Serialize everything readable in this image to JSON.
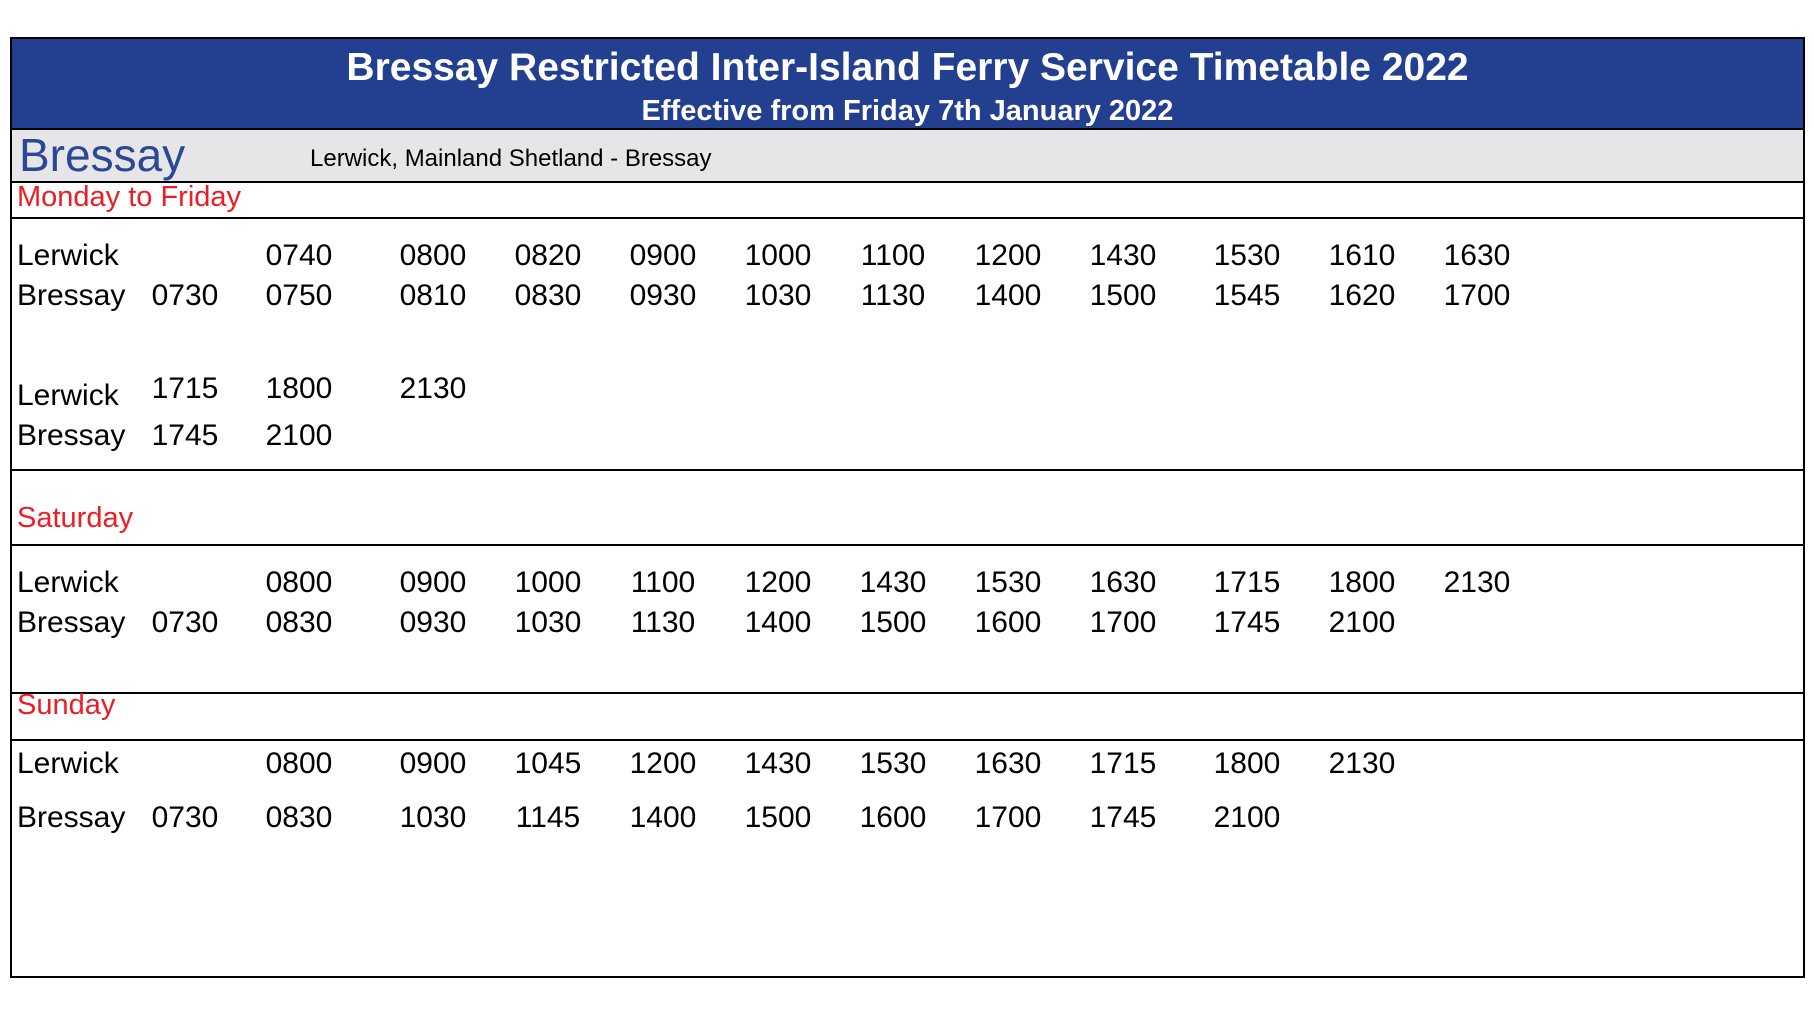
{
  "header": {
    "title": "Bressay Restricted Inter-Island Ferry Service Timetable  2022",
    "subtitle": "Effective from Friday 7th January 2022"
  },
  "route": {
    "island": "Bressay",
    "description": "Lerwick, Mainland Shetland - Bressay"
  },
  "stop_names": {
    "lerwick": "Lerwick",
    "bressay": "Bressay"
  },
  "colors": {
    "header_bg": "#233f8f",
    "route_bg": "#e6e5e8",
    "day_label": "#ee1c25",
    "island_text": "#2b4896"
  },
  "sections": [
    {
      "day": "Monday to Friday",
      "blocks": [
        {
          "lerwick": [
            "",
            "0740",
            "0800",
            "0820",
            "0900",
            "1000",
            "1100",
            "1200",
            "1430",
            "1530",
            "1610",
            "1630"
          ],
          "bressay": [
            "0730",
            "0750",
            "0810",
            "0830",
            "0930",
            "1030",
            "1130",
            "1400",
            "1500",
            "1545",
            "1620",
            "1700"
          ]
        },
        {
          "lerwick": [
            "1715",
            "1800",
            "2130"
          ],
          "bressay": [
            "1745",
            "2100"
          ]
        }
      ]
    },
    {
      "day": "Saturday",
      "blocks": [
        {
          "lerwick": [
            "",
            "0800",
            "0900",
            "1000",
            "1100",
            "1200",
            "1430",
            "1530",
            "1630",
            "1715",
            "1800",
            "2130"
          ],
          "bressay": [
            "0730",
            "0830",
            "0930",
            "1030",
            "1130",
            "1400",
            "1500",
            "1600",
            "1700",
            "1745",
            "2100"
          ]
        }
      ]
    },
    {
      "day": "Sunday",
      "blocks": [
        {
          "lerwick": [
            "",
            "0800",
            "0900",
            "1045",
            "1200",
            "1430",
            "1530",
            "1630",
            "1715",
            "1800",
            "2130"
          ],
          "bressay": [
            "0730",
            "0830",
            "1030",
            "1145",
            "1400",
            "1500",
            "1600",
            "1700",
            "1745",
            "2100"
          ]
        }
      ]
    }
  ]
}
